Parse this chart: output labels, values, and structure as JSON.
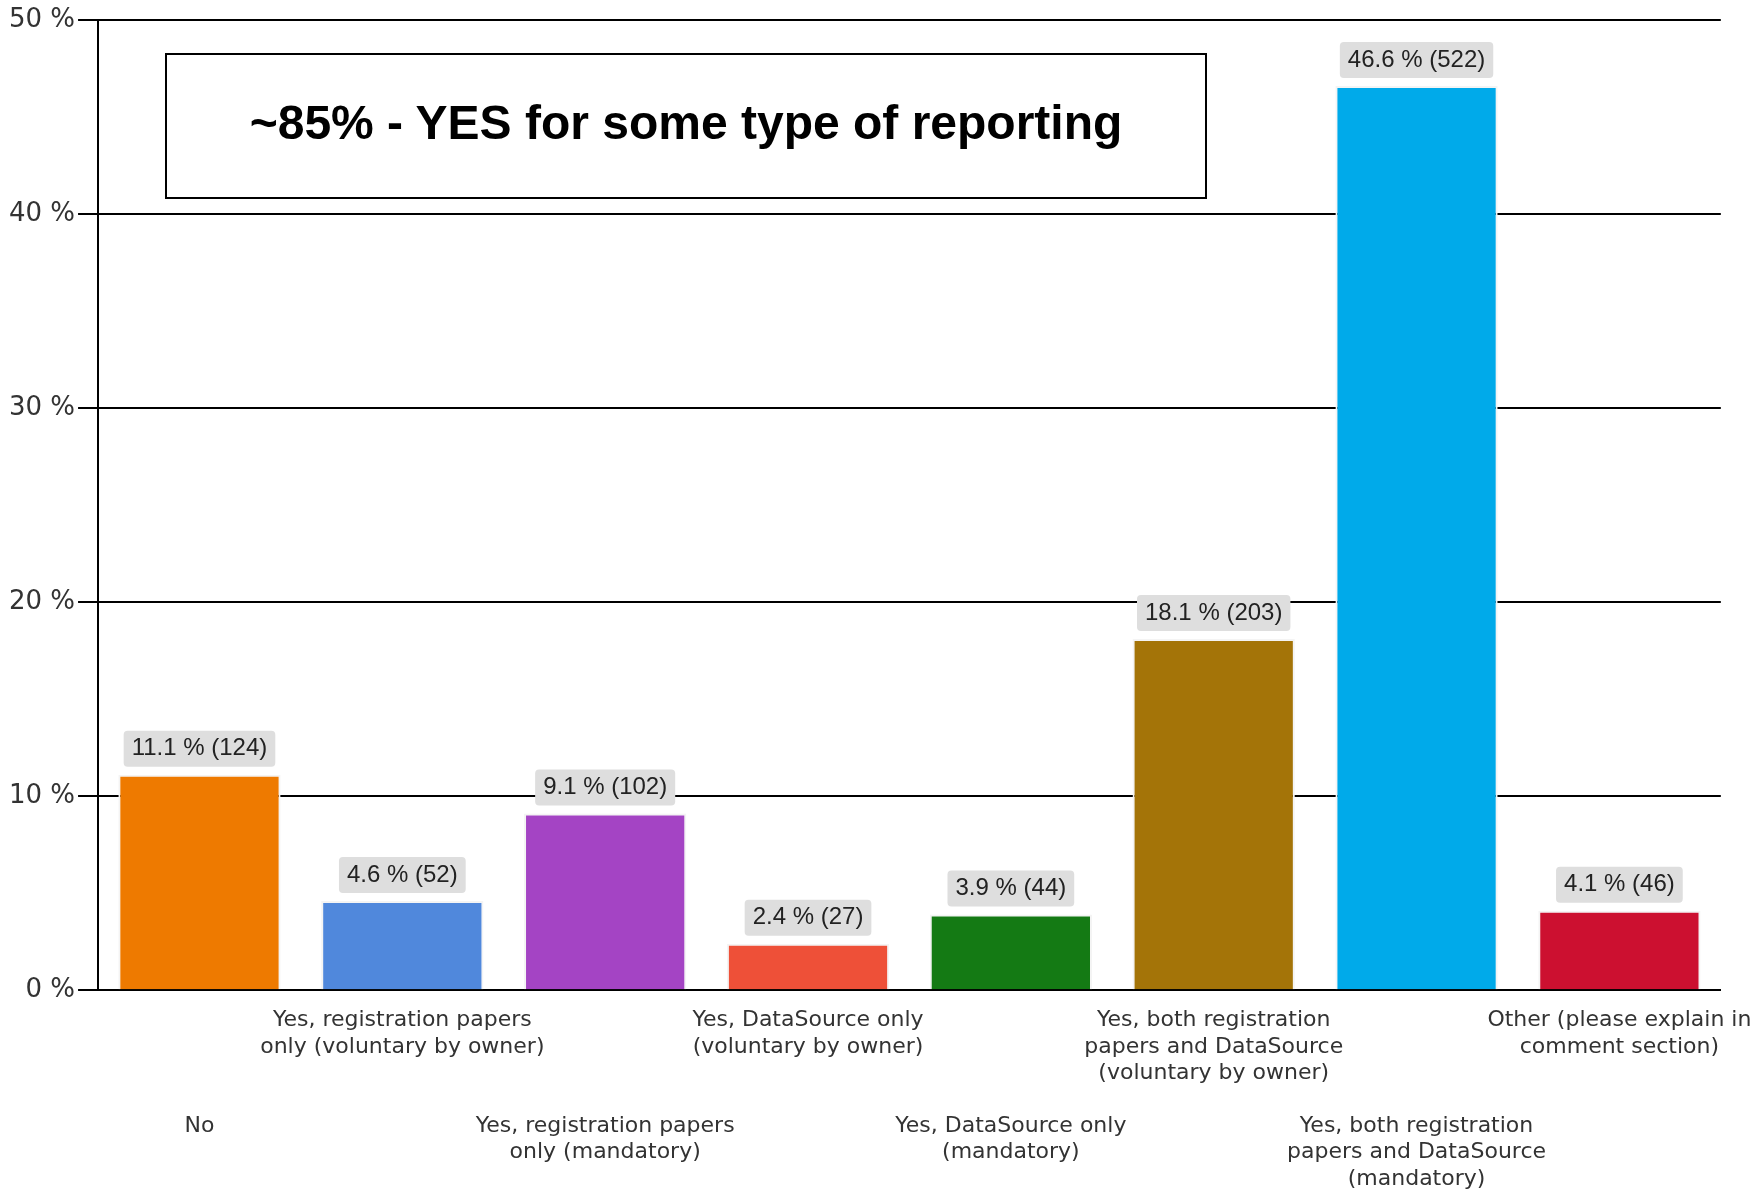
{
  "chart_data": {
    "type": "bar",
    "categories": [
      "No",
      "Yes, registration papers only (voluntary by owner)",
      "Yes, registration papers only (mandatory)",
      "Yes, DataSource only (voluntary by owner)",
      "Yes, DataSource only (mandatory)",
      "Yes, both registration papers and DataSource (voluntary by owner)",
      "Yes, both registration papers and DataSource (mandatory)",
      "Other (please explain in comment section)"
    ],
    "values": [
      11.1,
      4.6,
      9.1,
      2.4,
      3.9,
      18.1,
      46.6,
      4.1
    ],
    "colors": [
      "#ee7a00",
      "#5088dc",
      "#a444c4",
      "#ee5038",
      "#147a14",
      "#a47408",
      "#00aaea",
      "#cc1030"
    ],
    "value_labels": [
      "11.1 % (124)",
      "4.6 % (52)",
      "9.1 % (102)",
      "2.4 % (27)",
      "3.9 % (44)",
      "18.1 % (203)",
      "46.6 % (522)",
      "4.1 % (46)"
    ],
    "ylim": [
      0,
      50
    ],
    "yticks": [
      {
        "value": 0,
        "label": "0 %"
      },
      {
        "value": 10,
        "label": "10 %"
      },
      {
        "value": 20,
        "label": "20 %"
      },
      {
        "value": 30,
        "label": "30 %"
      },
      {
        "value": 40,
        "label": "40 %"
      },
      {
        "value": 50,
        "label": "50 %"
      }
    ],
    "grid": "y",
    "legend": false,
    "annotations": [
      "~85% - YES for some type of reporting"
    ]
  }
}
